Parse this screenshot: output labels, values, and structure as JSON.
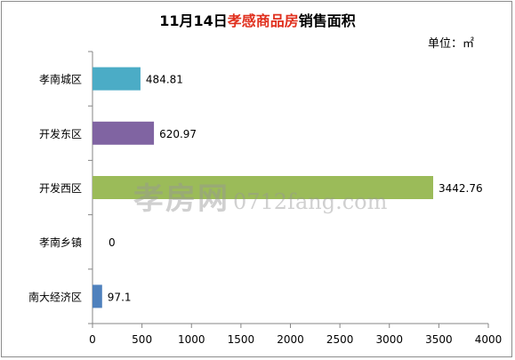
{
  "chart_data": {
    "type": "bar",
    "orientation": "horizontal",
    "title_prefix": "11月14日",
    "title_highlight": "孝感商品房",
    "title_suffix": "销售面积",
    "unit_label": "单位：㎡",
    "xlim": [
      0,
      4000
    ],
    "xticks": [
      "0",
      "500",
      "1000",
      "1500",
      "2000",
      "2500",
      "3000",
      "3500",
      "4000"
    ],
    "grid": false,
    "legend": "none",
    "categories": [
      "孝南城区",
      "开发东区",
      "开发西区",
      "孝南乡镇",
      "南大经济区"
    ],
    "values": [
      484.81,
      620.97,
      3442.76,
      0,
      97.1
    ],
    "value_labels": [
      "484.81",
      "620.97",
      "3442.76",
      "0",
      "97.1"
    ],
    "colors": [
      "#4bacc6",
      "#8064a2",
      "#9bbb59",
      "#f79646",
      "#4f81bd"
    ]
  },
  "watermark": {
    "logo": "孝房网",
    "url": "0712fang.com"
  }
}
